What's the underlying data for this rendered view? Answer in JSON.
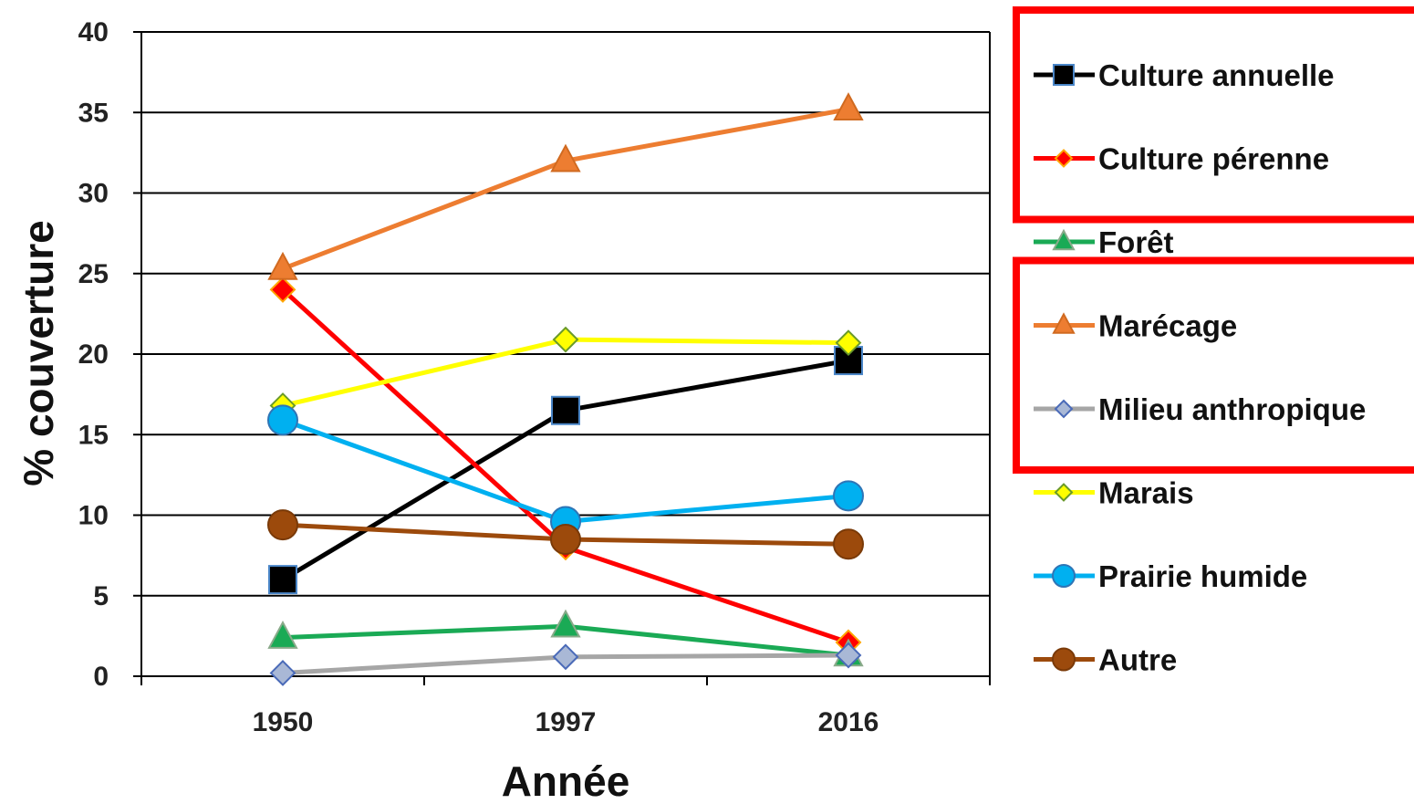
{
  "chart_data": {
    "type": "line",
    "title": "",
    "xlabel": "Année",
    "ylabel": "% couverture",
    "categories": [
      "1950",
      "1997",
      "2016"
    ],
    "ylim": [
      0,
      40
    ],
    "yticks": [
      "0",
      "5",
      "10",
      "15",
      "20",
      "25",
      "30",
      "35",
      "40"
    ],
    "grid": "horizontal",
    "legend_position": "right",
    "series": [
      {
        "name": "Culture annuelle",
        "values": [
          6.0,
          16.5,
          19.6
        ],
        "color": "#000000",
        "marker": "square",
        "marker_fill": "#000000",
        "marker_stroke": "#4a86c8"
      },
      {
        "name": "Culture pérenne",
        "values": [
          24.0,
          8.0,
          2.1
        ],
        "color": "#ff0000",
        "marker": "diamond",
        "marker_fill": "#ff0000",
        "marker_stroke": "#ffa500"
      },
      {
        "name": "Forêt",
        "values": [
          2.4,
          3.1,
          1.3
        ],
        "color": "#1aaa55",
        "marker": "triangle",
        "marker_fill": "#1aaa55",
        "marker_stroke": "#8aaa8a"
      },
      {
        "name": "Marécage",
        "values": [
          25.3,
          32.0,
          35.2
        ],
        "color": "#ed7d31",
        "marker": "triangle",
        "marker_fill": "#ed7d31",
        "marker_stroke": "#d06a20"
      },
      {
        "name": "Milieu anthropique",
        "values": [
          0.2,
          1.2,
          1.3
        ],
        "color": "#a6a6a6",
        "marker": "diamond",
        "marker_fill": "#a9b8d6",
        "marker_stroke": "#4a6ab8"
      },
      {
        "name": "Marais",
        "values": [
          16.8,
          20.9,
          20.7
        ],
        "color": "#ffff00",
        "marker": "diamond",
        "marker_fill": "#ffff00",
        "marker_stroke": "#6a9a2a"
      },
      {
        "name": "Prairie humide",
        "values": [
          15.9,
          9.6,
          11.2
        ],
        "color": "#00b0f0",
        "marker": "circle",
        "marker_fill": "#00b0f0",
        "marker_stroke": "#2e75b6"
      },
      {
        "name": "Autre",
        "values": [
          9.4,
          8.5,
          8.2
        ],
        "color": "#9c4a0c",
        "marker": "circle",
        "marker_fill": "#9c4a0c",
        "marker_stroke": "#7a3a08"
      }
    ],
    "highlighted_legend_entries": [
      "Culture annuelle",
      "Culture pérenne",
      "Marécage",
      "Milieu anthropique"
    ],
    "highlight_color": "#ff0000"
  }
}
